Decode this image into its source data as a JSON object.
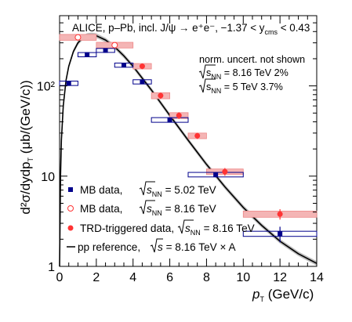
{
  "chart_data": {
    "type": "scatter",
    "title": "ALICE, p–Pb, incl. J/ψ → e⁺e⁻, −1.37 < y",
    "title_sub": "cms",
    "title_tail": " < 0.43",
    "xlabel": "p",
    "xlabel_sub": "T",
    "xlabel_unit": " (GeV/c)",
    "ylabel": "d²σ/dydp",
    "ylabel_sub": "T",
    "ylabel_unit": " (μb/(GeV/c))",
    "xlim": [
      0,
      14
    ],
    "ylim": [
      1,
      600
    ],
    "y_log": true,
    "x_ticks": [
      0,
      2,
      4,
      6,
      8,
      10,
      12,
      14
    ],
    "x_tick_labels": [
      "0",
      "2",
      "4",
      "6",
      "8",
      "10",
      "12",
      "14"
    ],
    "y_ticks": [
      1,
      10,
      100
    ],
    "y_tick_labels": [
      "1",
      "10",
      "10²"
    ],
    "notes": [
      {
        "text": "norm. uncert. not shown"
      },
      {
        "text": "s",
        "sub": "NN",
        "tail": " = 8.16 TeV 2%"
      },
      {
        "text": "s",
        "sub": "NN",
        "tail": " = 5 TeV 3.7%"
      }
    ],
    "series": [
      {
        "name": "MB data, ",
        "label_sqrt": "s",
        "label_sub": "NN",
        "label_tail": " = 5.02 TeV",
        "color": "#00008b",
        "marker": "square",
        "points": [
          {
            "xlo": 0,
            "xhi": 1,
            "x": 0.5,
            "y": 107,
            "elo": 100,
            "ehi": 114,
            "syslo": 101,
            "syshi": 113
          },
          {
            "xlo": 1,
            "xhi": 2,
            "x": 1.5,
            "y": 222,
            "elo": 212,
            "ehi": 232,
            "syslo": 210,
            "syshi": 234
          },
          {
            "xlo": 2,
            "xhi": 3,
            "x": 2.5,
            "y": 247,
            "elo": 237,
            "ehi": 258,
            "syslo": 235,
            "syshi": 260
          },
          {
            "xlo": 3,
            "xhi": 4,
            "x": 3.5,
            "y": 170,
            "elo": 163,
            "ehi": 177,
            "syslo": 161,
            "syshi": 179
          },
          {
            "xlo": 4,
            "xhi": 5,
            "x": 4.5,
            "y": 111,
            "elo": 106,
            "ehi": 116,
            "syslo": 105,
            "syshi": 117
          },
          {
            "xlo": 5,
            "xhi": 7,
            "x": 6.0,
            "y": 42,
            "elo": 40,
            "ehi": 44,
            "syslo": 39.5,
            "syshi": 44.5
          },
          {
            "xlo": 7,
            "xhi": 10,
            "x": 8.5,
            "y": 10.4,
            "elo": 9.7,
            "ehi": 11.1,
            "syslo": 9.8,
            "syshi": 11.0
          },
          {
            "xlo": 10,
            "xhi": 14,
            "x": 12.0,
            "y": 2.3,
            "elo": 1.85,
            "ehi": 2.75,
            "syslo": 2.15,
            "syshi": 2.45
          }
        ]
      },
      {
        "name": "MB data, ",
        "label_sqrt": "s",
        "label_sub": "NN",
        "label_tail": " = 8.16 TeV",
        "color": "#ff3333",
        "marker": "open-circle",
        "points": [
          {
            "xlo": 0,
            "xhi": 2,
            "x": 1.0,
            "y": 345,
            "elo": 320,
            "ehi": 370,
            "syslo": 320,
            "syshi": 372
          },
          {
            "xlo": 2,
            "xhi": 4,
            "x": 3.0,
            "y": 283,
            "elo": 265,
            "ehi": 300,
            "syslo": 263,
            "syshi": 304
          }
        ]
      },
      {
        "name": "TRD-triggered data, ",
        "label_sqrt": "s",
        "label_sub": "NN",
        "label_tail": " = 8.16 TeV",
        "color": "#ff3333",
        "marker": "filled-circle",
        "points": [
          {
            "xlo": 4,
            "xhi": 5,
            "x": 4.5,
            "y": 165,
            "elo": 153,
            "ehi": 177,
            "syslo": 154,
            "syshi": 177
          },
          {
            "xlo": 5,
            "xhi": 6,
            "x": 5.5,
            "y": 78,
            "elo": 72,
            "ehi": 84,
            "syslo": 72,
            "syshi": 84
          },
          {
            "xlo": 6,
            "xhi": 7,
            "x": 6.5,
            "y": 47,
            "elo": 43,
            "ehi": 51,
            "syslo": 43.5,
            "syshi": 50.5
          },
          {
            "xlo": 7,
            "xhi": 8,
            "x": 7.5,
            "y": 28,
            "elo": 25.8,
            "ehi": 30.2,
            "syslo": 26,
            "syshi": 30
          },
          {
            "xlo": 8,
            "xhi": 10,
            "x": 9.0,
            "y": 11.2,
            "elo": 10.1,
            "ehi": 12.3,
            "syslo": 10.4,
            "syshi": 12.0
          },
          {
            "xlo": 10,
            "xhi": 14,
            "x": 12.0,
            "y": 3.8,
            "elo": 3.3,
            "ehi": 4.3,
            "syslo": 3.5,
            "syshi": 4.1
          }
        ]
      },
      {
        "name": "pp reference, ",
        "label_sqrt": "s",
        "label_tail": " = 8.16 TeV × A",
        "color": "#000000",
        "marker": "line",
        "curve": [
          {
            "x": 0.0,
            "y": 1.0
          },
          {
            "x": 0.05,
            "y": 10
          },
          {
            "x": 0.1,
            "y": 25
          },
          {
            "x": 0.2,
            "y": 60
          },
          {
            "x": 0.35,
            "y": 115
          },
          {
            "x": 0.5,
            "y": 165
          },
          {
            "x": 0.75,
            "y": 240
          },
          {
            "x": 1.0,
            "y": 300
          },
          {
            "x": 1.25,
            "y": 340
          },
          {
            "x": 1.5,
            "y": 362
          },
          {
            "x": 1.75,
            "y": 368
          },
          {
            "x": 2.0,
            "y": 360
          },
          {
            "x": 2.5,
            "y": 322
          },
          {
            "x": 3.0,
            "y": 270
          },
          {
            "x": 3.5,
            "y": 215
          },
          {
            "x": 4.0,
            "y": 165
          },
          {
            "x": 4.5,
            "y": 122
          },
          {
            "x": 5.0,
            "y": 90
          },
          {
            "x": 5.5,
            "y": 65
          },
          {
            "x": 6.0,
            "y": 47
          },
          {
            "x": 7.0,
            "y": 25
          },
          {
            "x": 8.0,
            "y": 13.5
          },
          {
            "x": 9.0,
            "y": 7.6
          },
          {
            "x": 10.0,
            "y": 4.5
          },
          {
            "x": 11.0,
            "y": 2.85
          },
          {
            "x": 12.0,
            "y": 1.9
          },
          {
            "x": 13.0,
            "y": 1.38
          },
          {
            "x": 14.0,
            "y": 1.08
          }
        ]
      }
    ],
    "legend_position": "bottom-left",
    "colors": {
      "mb502": "#00008b",
      "trd": "#ff3333",
      "sys_fill_red": "#f4b5b5",
      "band": "#888888"
    }
  }
}
